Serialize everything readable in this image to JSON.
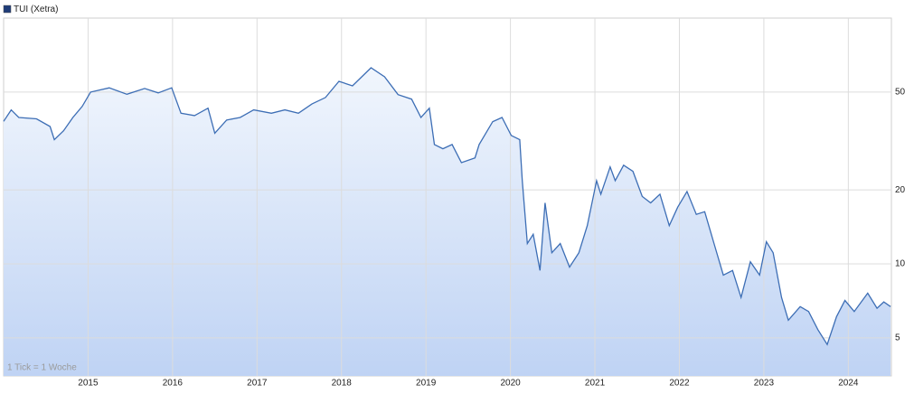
{
  "chart_data": {
    "type": "line",
    "series": [
      {
        "name": "TUI (Xetra)",
        "color": "#3d6eb5",
        "legend_color": "#1f3c78",
        "values": [
          38,
          42.3,
          39.4,
          38.9,
          36.2,
          32,
          34.8,
          39.4,
          43.7,
          50,
          52,
          49,
          51.7,
          49.6,
          52,
          41,
          40.1,
          43,
          34,
          38.5,
          39.4,
          42.3,
          41,
          42.3,
          41,
          44.7,
          47.5,
          55.3,
          53,
          62.8,
          57.7,
          48.8,
          46.8,
          39.4,
          43,
          30.6,
          29.4,
          30.6,
          25.8,
          27,
          30.6,
          37.9,
          39.4,
          33.3,
          32,
          21.8,
          12.1,
          13.2,
          9.4,
          17.7,
          11.1,
          12.1,
          9.7,
          11.1,
          14.3,
          21.8,
          19.2,
          24.8,
          21.8,
          25.2,
          23.8,
          18.8,
          17.7,
          19.2,
          14.3,
          17,
          19.7,
          15.9,
          16.3,
          12.1,
          9,
          9.4,
          7.3,
          10.2,
          9,
          12.3,
          11.1,
          7.3,
          5.9,
          6.7,
          6.4,
          5.4,
          4.7,
          6.1,
          7.1,
          6.4,
          7.6,
          6.6,
          7,
          6.7
        ]
      }
    ],
    "x": [
      2014.0,
      2014.09,
      2014.18,
      2014.39,
      2014.55,
      2014.6,
      2014.71,
      2014.82,
      2014.93,
      2015.03,
      2015.25,
      2015.46,
      2015.67,
      2015.83,
      2015.99,
      2016.1,
      2016.26,
      2016.42,
      2016.5,
      2016.64,
      2016.8,
      2016.96,
      2017.17,
      2017.33,
      2017.49,
      2017.65,
      2017.81,
      2017.97,
      2018.13,
      2018.35,
      2018.51,
      2018.67,
      2018.83,
      2018.94,
      2019.04,
      2019.1,
      2019.2,
      2019.31,
      2019.42,
      2019.58,
      2019.63,
      2019.79,
      2019.9,
      2020.01,
      2020.11,
      2020.14,
      2020.2,
      2020.27,
      2020.35,
      2020.41,
      2020.49,
      2020.59,
      2020.7,
      2020.81,
      2020.91,
      2021.02,
      2021.07,
      2021.18,
      2021.24,
      2021.34,
      2021.45,
      2021.56,
      2021.66,
      2021.77,
      2021.88,
      2021.98,
      2022.09,
      2022.2,
      2022.3,
      2022.41,
      2022.52,
      2022.63,
      2022.73,
      2022.84,
      2022.95,
      2023.03,
      2023.11,
      2023.21,
      2023.29,
      2023.43,
      2023.53,
      2023.64,
      2023.75,
      2023.86,
      2023.96,
      2024.07,
      2024.23,
      2024.34,
      2024.42,
      2024.5
    ],
    "xlim": [
      2014.0,
      2024.51
    ],
    "xticks": [
      2015,
      2016,
      2017,
      2018,
      2019,
      2020,
      2021,
      2022,
      2023,
      2024
    ],
    "ylim": [
      3.5,
      100
    ],
    "yticks": [
      5,
      10,
      20,
      50
    ],
    "log_scale": true,
    "grid": true,
    "legend": "top-left",
    "annotation": "1 Tick = 1 Woche"
  }
}
